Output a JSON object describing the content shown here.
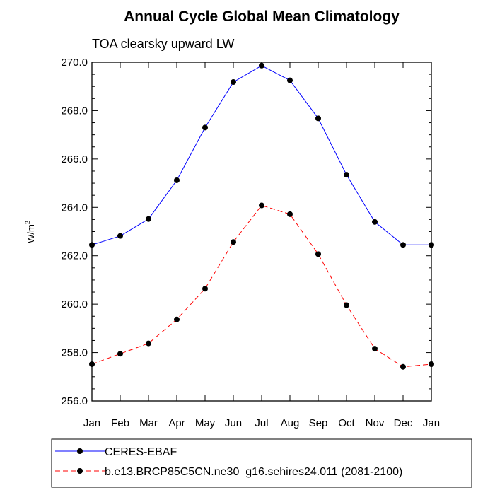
{
  "chart_data": {
    "type": "line",
    "title": "Annual Cycle Global Mean Climatology",
    "subtitle": "TOA clearsky upward LW",
    "ylabel": "W/m",
    "ylabel_superscript": "2",
    "ylim": [
      256.0,
      270.0
    ],
    "yticks": [
      "256.0",
      "258.0",
      "260.0",
      "262.0",
      "264.0",
      "266.0",
      "268.0",
      "270.0"
    ],
    "categories": [
      "Jan",
      "Feb",
      "Mar",
      "Apr",
      "May",
      "Jun",
      "Jul",
      "Aug",
      "Sep",
      "Oct",
      "Nov",
      "Dec",
      "Jan"
    ],
    "series": [
      {
        "name": "CERES-EBAF",
        "color": "#0000ff",
        "style": "solid",
        "values": [
          262.45,
          262.82,
          263.52,
          265.12,
          267.3,
          269.18,
          269.86,
          269.25,
          267.68,
          265.35,
          263.4,
          262.45,
          262.45
        ]
      },
      {
        "name": "b.e13.BRCP85C5CN.ne30_g16.sehires24.011 (2081-2100)",
        "color": "#ff0000",
        "style": "dashed",
        "values": [
          257.52,
          257.95,
          258.38,
          259.37,
          260.64,
          262.57,
          264.08,
          263.72,
          262.07,
          259.96,
          258.16,
          257.41,
          257.52
        ]
      }
    ]
  }
}
